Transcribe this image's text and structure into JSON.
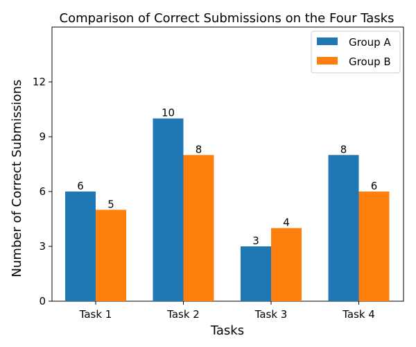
{
  "chart_data": {
    "type": "bar",
    "title": "Comparison of Correct Submissions on the Four Tasks",
    "xlabel": "Tasks",
    "ylabel": "Number of Correct Submissions",
    "categories": [
      "Task 1",
      "Task 2",
      "Task 3",
      "Task 4"
    ],
    "series": [
      {
        "name": "Group A",
        "values": [
          6,
          10,
          3,
          8
        ],
        "color": "#1f77b4"
      },
      {
        "name": "Group B",
        "values": [
          5,
          8,
          4,
          6
        ],
        "color": "#ff7f0e"
      }
    ],
    "ylim": [
      0,
      15
    ],
    "yticks": [
      0,
      3,
      6,
      9,
      12
    ],
    "grid": false,
    "legend_position": "top-right"
  }
}
